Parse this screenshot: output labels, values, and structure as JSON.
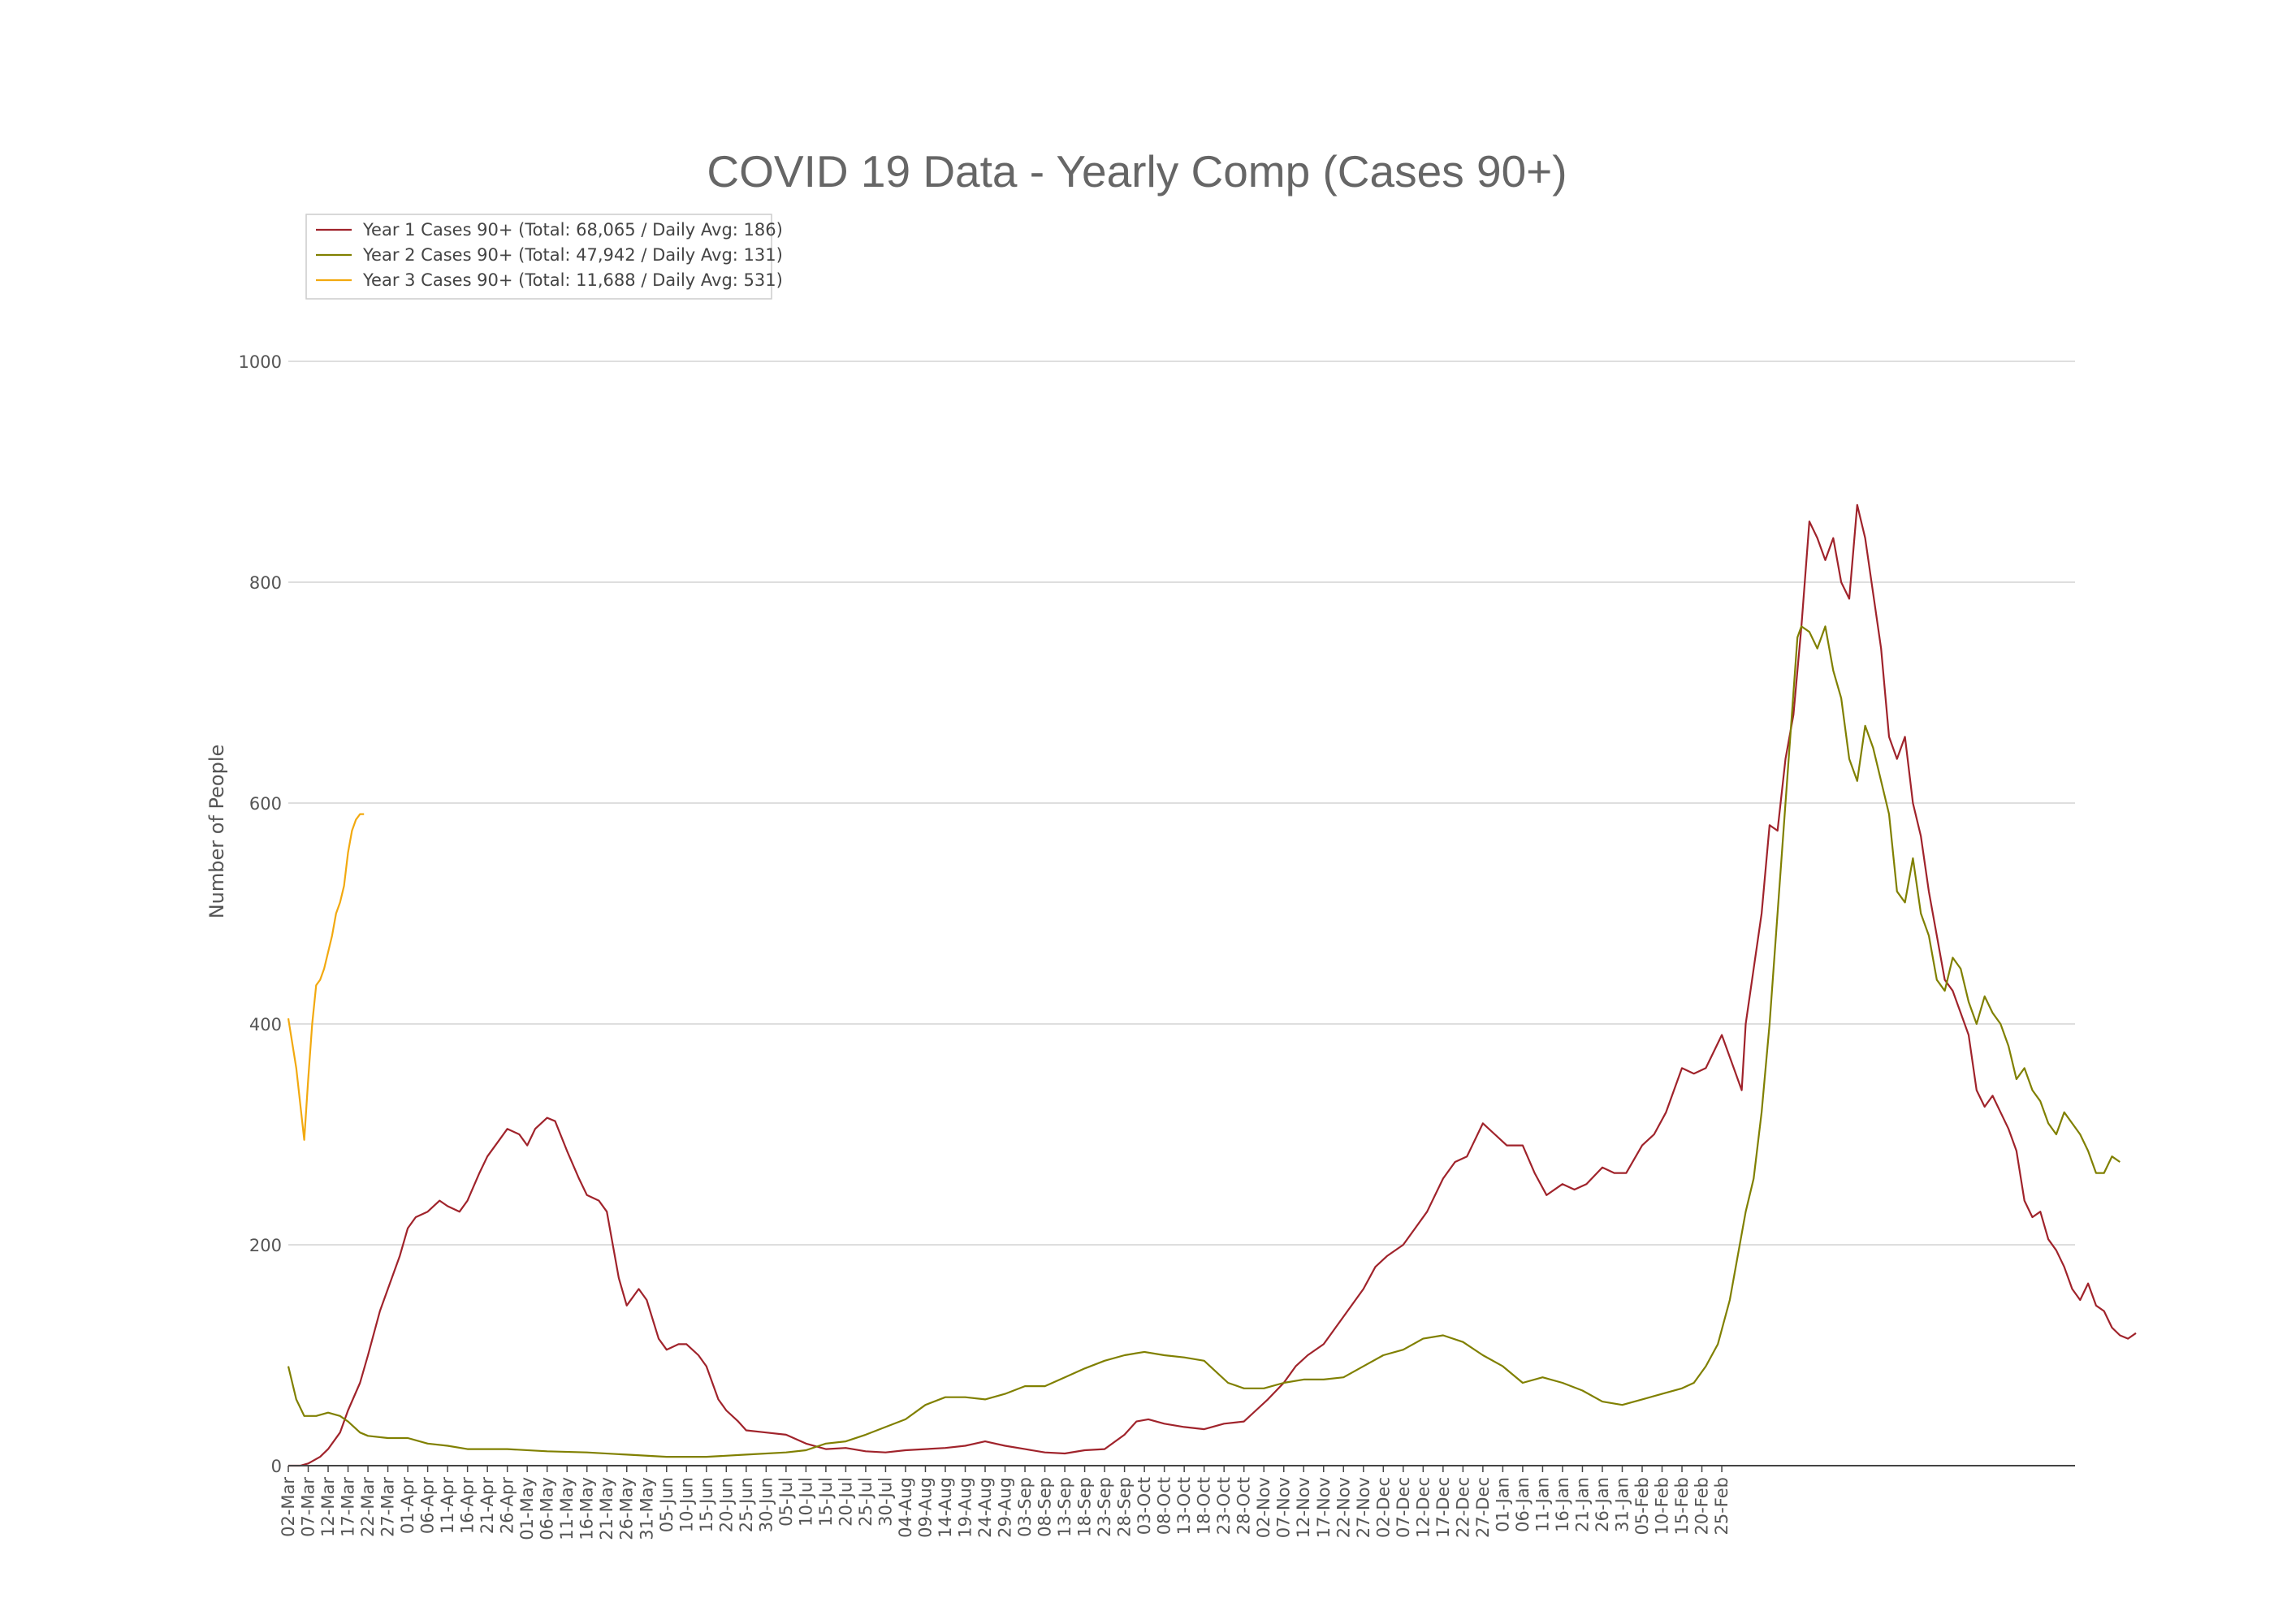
{
  "chart_data": {
    "type": "line",
    "title": "COVID 19 Data - Yearly Comp (Cases 90+)",
    "xlabel": "",
    "ylabel": "Number of People",
    "ylim": [
      0,
      1000
    ],
    "yticks": [
      0,
      200,
      400,
      600,
      800,
      1000
    ],
    "grid": true,
    "legend_position": "top-left",
    "x_tick_labels": [
      "02-Mar",
      "07-Mar",
      "12-Mar",
      "17-Mar",
      "22-Mar",
      "27-Mar",
      "01-Apr",
      "06-Apr",
      "11-Apr",
      "16-Apr",
      "21-Apr",
      "26-Apr",
      "01-May",
      "06-May",
      "11-May",
      "16-May",
      "21-May",
      "26-May",
      "31-May",
      "05-Jun",
      "10-Jun",
      "15-Jun",
      "20-Jun",
      "25-Jun",
      "30-Jun",
      "05-Jul",
      "10-Jul",
      "15-Jul",
      "20-Jul",
      "25-Jul",
      "30-Jul",
      "04-Aug",
      "09-Aug",
      "14-Aug",
      "19-Aug",
      "24-Aug",
      "29-Aug",
      "03-Sep",
      "08-Sep",
      "13-Sep",
      "18-Sep",
      "23-Sep",
      "28-Sep",
      "03-Oct",
      "08-Oct",
      "13-Oct",
      "18-Oct",
      "23-Oct",
      "28-Oct",
      "02-Nov",
      "07-Nov",
      "12-Nov",
      "17-Nov",
      "22-Nov",
      "27-Nov",
      "02-Dec",
      "07-Dec",
      "12-Dec",
      "17-Dec",
      "22-Dec",
      "27-Dec",
      "01-Jan",
      "06-Jan",
      "11-Jan",
      "16-Jan",
      "21-Jan",
      "26-Jan",
      "31-Jan",
      "05-Feb",
      "10-Feb",
      "15-Feb",
      "20-Feb",
      "25-Feb"
    ],
    "series": [
      {
        "name": "Year 1 Cases 90+ (Total: 68,065 / Daily Avg: 186)",
        "color": "#a0232b",
        "points": [
          [
            0,
            0
          ],
          [
            3,
            0
          ],
          [
            5,
            2
          ],
          [
            8,
            8
          ],
          [
            10,
            15
          ],
          [
            13,
            30
          ],
          [
            15,
            50
          ],
          [
            18,
            75
          ],
          [
            20,
            100
          ],
          [
            23,
            140
          ],
          [
            25,
            160
          ],
          [
            28,
            190
          ],
          [
            30,
            215
          ],
          [
            32,
            225
          ],
          [
            35,
            230
          ],
          [
            38,
            240
          ],
          [
            40,
            235
          ],
          [
            43,
            230
          ],
          [
            45,
            240
          ],
          [
            48,
            265
          ],
          [
            50,
            280
          ],
          [
            53,
            295
          ],
          [
            55,
            305
          ],
          [
            58,
            300
          ],
          [
            60,
            290
          ],
          [
            62,
            305
          ],
          [
            65,
            315
          ],
          [
            67,
            312
          ],
          [
            70,
            285
          ],
          [
            73,
            260
          ],
          [
            75,
            245
          ],
          [
            78,
            240
          ],
          [
            80,
            230
          ],
          [
            83,
            170
          ],
          [
            85,
            145
          ],
          [
            88,
            160
          ],
          [
            90,
            150
          ],
          [
            93,
            115
          ],
          [
            95,
            105
          ],
          [
            98,
            110
          ],
          [
            100,
            110
          ],
          [
            103,
            100
          ],
          [
            105,
            90
          ],
          [
            108,
            60
          ],
          [
            110,
            50
          ],
          [
            113,
            40
          ],
          [
            115,
            32
          ],
          [
            120,
            30
          ],
          [
            125,
            28
          ],
          [
            130,
            20
          ],
          [
            135,
            15
          ],
          [
            140,
            16
          ],
          [
            145,
            13
          ],
          [
            150,
            12
          ],
          [
            155,
            14
          ],
          [
            160,
            15
          ],
          [
            165,
            16
          ],
          [
            170,
            18
          ],
          [
            175,
            22
          ],
          [
            180,
            18
          ],
          [
            185,
            15
          ],
          [
            190,
            12
          ],
          [
            195,
            11
          ],
          [
            200,
            14
          ],
          [
            205,
            15
          ],
          [
            210,
            28
          ],
          [
            213,
            40
          ],
          [
            216,
            42
          ],
          [
            220,
            38
          ],
          [
            225,
            35
          ],
          [
            230,
            33
          ],
          [
            235,
            38
          ],
          [
            240,
            40
          ],
          [
            243,
            50
          ],
          [
            246,
            60
          ],
          [
            250,
            75
          ],
          [
            253,
            90
          ],
          [
            256,
            100
          ],
          [
            260,
            110
          ],
          [
            263,
            125
          ],
          [
            266,
            140
          ],
          [
            270,
            160
          ],
          [
            273,
            180
          ],
          [
            276,
            190
          ],
          [
            280,
            200
          ],
          [
            283,
            215
          ],
          [
            286,
            230
          ],
          [
            290,
            260
          ],
          [
            293,
            275
          ],
          [
            296,
            280
          ],
          [
            300,
            310
          ],
          [
            303,
            300
          ],
          [
            306,
            290
          ],
          [
            310,
            290
          ],
          [
            313,
            265
          ],
          [
            316,
            245
          ],
          [
            320,
            255
          ],
          [
            323,
            250
          ],
          [
            326,
            255
          ],
          [
            330,
            270
          ],
          [
            333,
            265
          ],
          [
            336,
            265
          ],
          [
            340,
            290
          ],
          [
            343,
            300
          ],
          [
            346,
            320
          ],
          [
            350,
            360
          ],
          [
            353,
            355
          ],
          [
            356,
            360
          ],
          [
            360,
            390
          ],
          [
            363,
            360
          ],
          [
            365,
            340
          ],
          [
            366,
            400
          ],
          [
            368,
            450
          ],
          [
            370,
            500
          ],
          [
            372,
            580
          ],
          [
            374,
            575
          ],
          [
            376,
            640
          ],
          [
            378,
            680
          ],
          [
            380,
            760
          ],
          [
            382,
            855
          ],
          [
            384,
            840
          ],
          [
            386,
            820
          ],
          [
            388,
            840
          ],
          [
            390,
            800
          ],
          [
            392,
            785
          ],
          [
            394,
            870
          ],
          [
            396,
            840
          ],
          [
            398,
            790
          ],
          [
            400,
            740
          ],
          [
            402,
            660
          ],
          [
            404,
            640
          ],
          [
            406,
            660
          ],
          [
            408,
            600
          ],
          [
            410,
            570
          ],
          [
            412,
            520
          ],
          [
            414,
            480
          ],
          [
            416,
            440
          ],
          [
            418,
            430
          ],
          [
            420,
            410
          ],
          [
            422,
            390
          ],
          [
            424,
            340
          ],
          [
            426,
            325
          ],
          [
            428,
            335
          ],
          [
            430,
            320
          ],
          [
            432,
            305
          ],
          [
            434,
            285
          ],
          [
            436,
            240
          ],
          [
            438,
            225
          ],
          [
            440,
            230
          ],
          [
            442,
            205
          ],
          [
            444,
            195
          ],
          [
            446,
            180
          ],
          [
            448,
            160
          ],
          [
            450,
            150
          ],
          [
            452,
            165
          ],
          [
            454,
            145
          ],
          [
            456,
            140
          ],
          [
            458,
            125
          ],
          [
            460,
            118
          ],
          [
            462,
            115
          ],
          [
            464,
            120
          ]
        ]
      },
      {
        "name": "Year 2 Cases 90+ (Total: 47,942 / Daily Avg: 131)",
        "color": "#808000",
        "points": [
          [
            0,
            90
          ],
          [
            2,
            60
          ],
          [
            4,
            45
          ],
          [
            7,
            45
          ],
          [
            10,
            48
          ],
          [
            13,
            45
          ],
          [
            15,
            40
          ],
          [
            18,
            30
          ],
          [
            20,
            27
          ],
          [
            25,
            25
          ],
          [
            30,
            25
          ],
          [
            35,
            20
          ],
          [
            40,
            18
          ],
          [
            45,
            15
          ],
          [
            55,
            15
          ],
          [
            65,
            13
          ],
          [
            75,
            12
          ],
          [
            85,
            10
          ],
          [
            95,
            8
          ],
          [
            105,
            8
          ],
          [
            115,
            10
          ],
          [
            125,
            12
          ],
          [
            130,
            14
          ],
          [
            135,
            20
          ],
          [
            140,
            22
          ],
          [
            145,
            28
          ],
          [
            150,
            35
          ],
          [
            155,
            42
          ],
          [
            160,
            55
          ],
          [
            165,
            62
          ],
          [
            170,
            62
          ],
          [
            175,
            60
          ],
          [
            180,
            65
          ],
          [
            185,
            72
          ],
          [
            190,
            72
          ],
          [
            195,
            80
          ],
          [
            200,
            88
          ],
          [
            205,
            95
          ],
          [
            210,
            100
          ],
          [
            215,
            103
          ],
          [
            220,
            100
          ],
          [
            225,
            98
          ],
          [
            230,
            95
          ],
          [
            233,
            85
          ],
          [
            236,
            75
          ],
          [
            240,
            70
          ],
          [
            245,
            70
          ],
          [
            250,
            75
          ],
          [
            255,
            78
          ],
          [
            260,
            78
          ],
          [
            265,
            80
          ],
          [
            270,
            90
          ],
          [
            275,
            100
          ],
          [
            280,
            105
          ],
          [
            285,
            115
          ],
          [
            290,
            118
          ],
          [
            295,
            112
          ],
          [
            300,
            100
          ],
          [
            305,
            90
          ],
          [
            310,
            75
          ],
          [
            315,
            80
          ],
          [
            320,
            75
          ],
          [
            325,
            68
          ],
          [
            330,
            58
          ],
          [
            335,
            55
          ],
          [
            340,
            60
          ],
          [
            345,
            65
          ],
          [
            350,
            70
          ],
          [
            353,
            75
          ],
          [
            356,
            90
          ],
          [
            359,
            110
          ],
          [
            362,
            150
          ],
          [
            364,
            190
          ],
          [
            366,
            230
          ],
          [
            368,
            260
          ],
          [
            370,
            320
          ],
          [
            372,
            400
          ],
          [
            374,
            500
          ],
          [
            376,
            600
          ],
          [
            377,
            650
          ],
          [
            378,
            700
          ],
          [
            379,
            750
          ],
          [
            380,
            760
          ],
          [
            382,
            755
          ],
          [
            384,
            740
          ],
          [
            386,
            760
          ],
          [
            388,
            720
          ],
          [
            390,
            695
          ],
          [
            392,
            640
          ],
          [
            394,
            620
          ],
          [
            396,
            670
          ],
          [
            398,
            650
          ],
          [
            400,
            620
          ],
          [
            402,
            590
          ],
          [
            404,
            520
          ],
          [
            406,
            510
          ],
          [
            408,
            550
          ],
          [
            410,
            500
          ],
          [
            412,
            480
          ],
          [
            414,
            440
          ],
          [
            416,
            430
          ],
          [
            418,
            460
          ],
          [
            420,
            450
          ],
          [
            422,
            420
          ],
          [
            424,
            400
          ],
          [
            426,
            425
          ],
          [
            428,
            410
          ],
          [
            430,
            400
          ],
          [
            432,
            380
          ],
          [
            434,
            350
          ],
          [
            436,
            360
          ],
          [
            438,
            340
          ],
          [
            440,
            330
          ],
          [
            442,
            310
          ],
          [
            444,
            300
          ],
          [
            446,
            320
          ],
          [
            448,
            310
          ],
          [
            450,
            300
          ],
          [
            452,
            285
          ],
          [
            454,
            265
          ],
          [
            456,
            265
          ],
          [
            458,
            280
          ],
          [
            460,
            275
          ]
        ]
      },
      {
        "name": "Year 3 Cases 90+ (Total: 11,688 / Daily Avg: 531)",
        "color": "#f2a90f",
        "points": [
          [
            0,
            405
          ],
          [
            2,
            360
          ],
          [
            4,
            295
          ],
          [
            5,
            350
          ],
          [
            6,
            400
          ],
          [
            7,
            435
          ],
          [
            8,
            440
          ],
          [
            9,
            450
          ],
          [
            10,
            465
          ],
          [
            11,
            480
          ],
          [
            12,
            500
          ],
          [
            13,
            510
          ],
          [
            14,
            525
          ],
          [
            15,
            555
          ],
          [
            16,
            575
          ],
          [
            17,
            585
          ],
          [
            18,
            590
          ],
          [
            19,
            590
          ]
        ]
      }
    ]
  }
}
